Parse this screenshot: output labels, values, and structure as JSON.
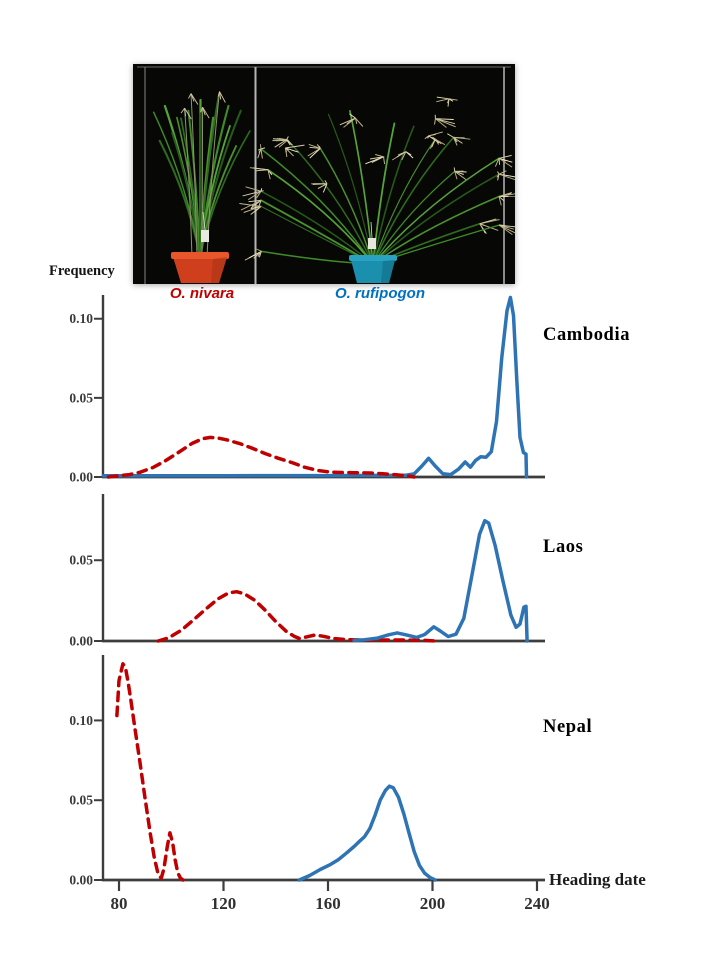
{
  "figure": {
    "photo": {
      "left_species": "O. nivara",
      "right_species": "O. rufipogon",
      "left_species_color": "#c00000",
      "right_species_color": "#0070c0",
      "background_color": "#070705",
      "left_pot_color": "#cf3f1d",
      "right_pot_color": "#1b8fae"
    }
  },
  "chart_data": {
    "type": "line",
    "title": "",
    "xlabel": "Heading date",
    "ylabel": "Frequency",
    "xlim": [
      74,
      243
    ],
    "xticks": [
      80,
      120,
      160,
      200,
      240
    ],
    "grid": false,
    "legend": {
      "dashed_red": "O. nivara",
      "solid_blue": "O. rufipogon"
    },
    "charts": [
      {
        "name": "Cambodia",
        "ylim": [
          0,
          0.115
        ],
        "yticks": [
          "0.00",
          "0.05",
          "0.10"
        ],
        "series": [
          {
            "name": "O. nivara",
            "style": "dashed",
            "color": "#c00000",
            "z": 1,
            "points": [
              [
                76,
                0
              ],
              [
                80,
                0.0008
              ],
              [
                84,
                0.0015
              ],
              [
                88,
                0.003
              ],
              [
                93,
                0.006
              ],
              [
                98,
                0.0105
              ],
              [
                103,
                0.0158
              ],
              [
                108,
                0.0212
              ],
              [
                112,
                0.0242
              ],
              [
                115,
                0.025
              ],
              [
                118,
                0.0246
              ],
              [
                121,
                0.0236
              ],
              [
                126,
                0.0212
              ],
              [
                131,
                0.0182
              ],
              [
                136,
                0.0148
              ],
              [
                141,
                0.0118
              ],
              [
                146,
                0.0092
              ],
              [
                151,
                0.0062
              ],
              [
                156,
                0.0042
              ],
              [
                161,
                0.0031
              ],
              [
                166,
                0.0028
              ],
              [
                171,
                0.0027
              ],
              [
                176,
                0.0025
              ],
              [
                181,
                0.002
              ],
              [
                186,
                0.0014
              ],
              [
                190,
                0.0008
              ],
              [
                193,
                0
              ]
            ]
          },
          {
            "name": "O. rufipogon",
            "style": "solid",
            "color": "#2e74b5",
            "z": 0,
            "points": [
              [
                74,
                0.0008
              ],
              [
                120,
                0.0008
              ],
              [
                160,
                0.0009
              ],
              [
                185,
                0.001
              ],
              [
                190,
                0.0012
              ],
              [
                193,
                0.002
              ],
              [
                196,
                0.007
              ],
              [
                198.5,
                0.0118
              ],
              [
                201,
                0.007
              ],
              [
                204,
                0.002
              ],
              [
                207,
                0.0015
              ],
              [
                210,
                0.005
              ],
              [
                212.5,
                0.0095
              ],
              [
                214.5,
                0.0062
              ],
              [
                216.5,
                0.0105
              ],
              [
                218.5,
                0.0128
              ],
              [
                220.5,
                0.0125
              ],
              [
                222.5,
                0.016
              ],
              [
                224.5,
                0.035
              ],
              [
                226.5,
                0.075
              ],
              [
                228.5,
                0.105
              ],
              [
                229.8,
                0.1135
              ],
              [
                231,
                0.102
              ],
              [
                232.3,
                0.06
              ],
              [
                233.5,
                0.025
              ],
              [
                234.8,
                0.0155
              ],
              [
                235.8,
                0.0145
              ],
              [
                236,
                0
              ]
            ]
          }
        ]
      },
      {
        "name": "Laos",
        "ylim": [
          0,
          0.091
        ],
        "yticks": [
          "0.00",
          "0.05"
        ],
        "series": [
          {
            "name": "O. nivara",
            "style": "dashed",
            "color": "#c00000",
            "z": 0,
            "points": [
              [
                95,
                0
              ],
              [
                99,
                0.002
              ],
              [
                104,
                0.0068
              ],
              [
                109,
                0.0138
              ],
              [
                114,
                0.0208
              ],
              [
                118,
                0.0262
              ],
              [
                122,
                0.0298
              ],
              [
                125,
                0.0305
              ],
              [
                128,
                0.0292
              ],
              [
                132,
                0.0252
              ],
              [
                136,
                0.019
              ],
              [
                140,
                0.012
              ],
              [
                144,
                0.006
              ],
              [
                147,
                0.003
              ],
              [
                149,
                0.0016
              ],
              [
                152,
                0.0026
              ],
              [
                155,
                0.0037
              ],
              [
                158,
                0.003
              ],
              [
                162,
                0.0016
              ],
              [
                167,
                0.0008
              ],
              [
                175,
                0.0006
              ],
              [
                190,
                0.0006
              ],
              [
                197,
                0.0004
              ],
              [
                201,
                0
              ]
            ]
          },
          {
            "name": "O. rufipogon",
            "style": "solid",
            "color": "#2e74b5",
            "z": 1,
            "points": [
              [
                170,
                0.0004
              ],
              [
                174,
                0.0008
              ],
              [
                179,
                0.0018
              ],
              [
                183,
                0.0038
              ],
              [
                186.5,
                0.005
              ],
              [
                190,
                0.0038
              ],
              [
                194,
                0.0022
              ],
              [
                197,
                0.004
              ],
              [
                200.5,
                0.0088
              ],
              [
                203,
                0.0062
              ],
              [
                206,
                0.0028
              ],
              [
                209,
                0.0042
              ],
              [
                212,
                0.014
              ],
              [
                215,
                0.04
              ],
              [
                218,
                0.066
              ],
              [
                220,
                0.0745
              ],
              [
                221.5,
                0.073
              ],
              [
                224,
                0.059
              ],
              [
                227,
                0.037
              ],
              [
                230,
                0.016
              ],
              [
                232,
                0.0085
              ],
              [
                233.5,
                0.0105
              ],
              [
                235,
                0.021
              ],
              [
                235.8,
                0.0215
              ],
              [
                236.2,
                0
              ]
            ]
          }
        ]
      },
      {
        "name": "Nepal",
        "ylim": [
          0,
          0.141
        ],
        "yticks": [
          "0.00",
          "0.05",
          "0.10"
        ],
        "series": [
          {
            "name": "O. nivara",
            "style": "dashed",
            "color": "#c00000",
            "z": 0,
            "points": [
              [
                79.2,
                0.103
              ],
              [
                80,
                0.125
              ],
              [
                81.5,
                0.1355
              ],
              [
                82.5,
                0.133
              ],
              [
                83.5,
                0.124
              ],
              [
                84.5,
                0.113
              ],
              [
                86,
                0.096
              ],
              [
                88,
                0.074
              ],
              [
                90,
                0.051
              ],
              [
                92,
                0.029
              ],
              [
                93.5,
                0.014
              ],
              [
                95,
                0.0035
              ],
              [
                96.2,
                0.0012
              ],
              [
                97.2,
                0.007
              ],
              [
                98.5,
                0.021
              ],
              [
                99.5,
                0.0295
              ],
              [
                100.5,
                0.0235
              ],
              [
                101.5,
                0.0125
              ],
              [
                102.5,
                0.0045
              ],
              [
                103.5,
                0.0012
              ],
              [
                104.5,
                0
              ]
            ]
          },
          {
            "name": "O. rufipogon",
            "style": "solid",
            "color": "#2e74b5",
            "z": 1,
            "points": [
              [
                149,
                0
              ],
              [
                153,
                0.0028
              ],
              [
                157,
                0.0066
              ],
              [
                161,
                0.0098
              ],
              [
                164,
                0.0128
              ],
              [
                167,
                0.0168
              ],
              [
                170,
                0.021
              ],
              [
                172,
                0.0242
              ],
              [
                174,
                0.0272
              ],
              [
                176,
                0.0322
              ],
              [
                178,
                0.0405
              ],
              [
                180,
                0.0502
              ],
              [
                182,
                0.0562
              ],
              [
                183.5,
                0.0588
              ],
              [
                185,
                0.0578
              ],
              [
                187,
                0.0518
              ],
              [
                189,
                0.0415
              ],
              [
                191,
                0.0295
              ],
              [
                193,
                0.0178
              ],
              [
                195,
                0.0092
              ],
              [
                197,
                0.0042
              ],
              [
                199,
                0.0016
              ],
              [
                201,
                0
              ]
            ]
          }
        ]
      }
    ]
  }
}
